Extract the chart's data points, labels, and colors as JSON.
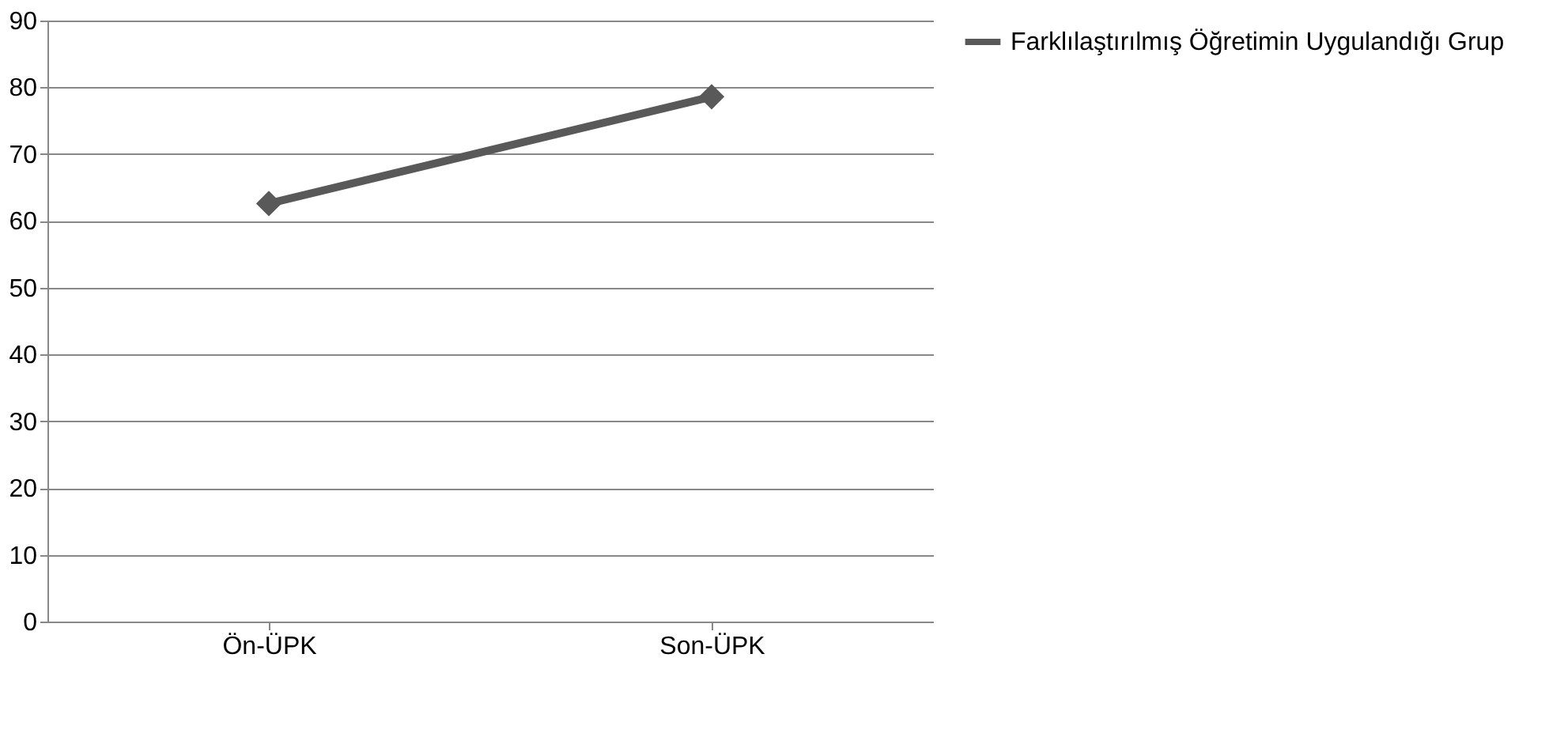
{
  "chart_data": {
    "type": "line",
    "categories": [
      "Ön-ÜPK",
      "Son-ÜPK"
    ],
    "series": [
      {
        "name": "Farklılaştırılmış Öğretimin Uygulandığı Grup",
        "color": "#595959",
        "values": [
          62.6,
          78.6
        ]
      }
    ],
    "ylim": [
      0,
      90
    ],
    "yticks": [
      0,
      10,
      20,
      30,
      40,
      50,
      60,
      70,
      80,
      90
    ],
    "grid": "y",
    "legend": "right",
    "marker": "diamond",
    "line_style": "solid"
  }
}
